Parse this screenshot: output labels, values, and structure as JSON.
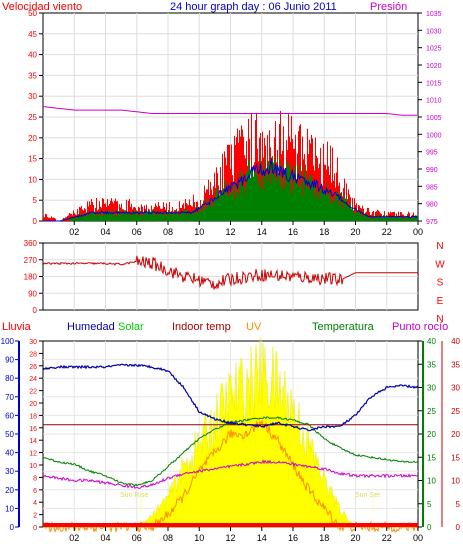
{
  "header": {
    "title": "24 hour graph day : 06 Junio 2011",
    "wind_label": "Velocidad viento",
    "pressure_label": "Presión"
  },
  "bottom_labels": {
    "rain": "Lluvia",
    "humidity": "Humedad",
    "solar": "Solar",
    "indoor_temp": "Indoor temp",
    "uv": "UV",
    "temperature": "Temperatura",
    "dew_point": "Punto rocío"
  },
  "annotations": {
    "sunrise": "Sun Rise",
    "sunset": "Sun Set"
  },
  "colors": {
    "wind_gust": "#ff0000",
    "wind_avg": "#0000cc",
    "wind_green": "#008000",
    "pressure": "#cc00cc",
    "direction": "#cc0000",
    "humidity": "#0000aa",
    "solar": "#ffff00",
    "uv": "#ff8c00",
    "indoor": "#990000",
    "temperature": "#008000",
    "dew_point": "#cc00cc",
    "rain_axis": "#0000cc",
    "left_red": "#ff0000",
    "right_magenta": "#cc00cc",
    "right_green": "#008000",
    "right_red": "#cc0000"
  },
  "chart_data": [
    {
      "type": "bar",
      "name": "wind-panel",
      "ylim_left": [
        0,
        50
      ],
      "left_ticks": [
        "0",
        "5",
        "10",
        "15",
        "20",
        "25",
        "30",
        "35",
        "40",
        "45",
        "50"
      ],
      "ylim_right": [
        975,
        1035
      ],
      "right_ticks": [
        "975",
        "980",
        "985",
        "990",
        "995",
        "1000",
        "1005",
        "1010",
        "1015",
        "1020",
        "1025",
        "1030",
        "1035"
      ],
      "x_ticks": [
        "02",
        "04",
        "06",
        "08",
        "10",
        "12",
        "14",
        "16",
        "18",
        "20",
        "22",
        "00"
      ],
      "wind_gust_hourly": [
        2,
        0,
        3,
        5,
        5,
        5,
        4,
        4,
        4,
        5,
        8,
        15,
        20,
        24,
        26,
        24,
        20,
        18,
        15,
        5,
        3,
        2,
        2,
        2
      ],
      "wind_avg_hourly": [
        0,
        0,
        1,
        2,
        2,
        2,
        2,
        2,
        2,
        2,
        4,
        7,
        9,
        12,
        13,
        11,
        10,
        8,
        6,
        3,
        1,
        1,
        1,
        1
      ],
      "pressure_hourly": [
        1008,
        1007.5,
        1007,
        1007,
        1007,
        1007,
        1006.5,
        1006,
        1006,
        1006,
        1006,
        1006,
        1006,
        1006,
        1006,
        1006,
        1006,
        1006,
        1006,
        1006,
        1006,
        1006,
        1006,
        1005.5,
        1005.5
      ]
    },
    {
      "type": "line",
      "name": "direction-panel",
      "ylim": [
        0,
        360
      ],
      "y_ticks": [
        "0",
        "90",
        "180",
        "270",
        "360"
      ],
      "compass_labels": [
        "N",
        "W",
        "S",
        "E",
        "N"
      ],
      "direction_hourly": [
        250,
        250,
        250,
        250,
        250,
        245,
        260,
        250,
        215,
        180,
        160,
        140,
        165,
        180,
        190,
        185,
        180,
        175,
        170,
        160,
        200,
        200,
        200,
        200,
        200
      ]
    },
    {
      "type": "line",
      "name": "weather-panel",
      "rain_ticks": [
        "0",
        "10",
        "20",
        "30",
        "40",
        "50",
        "60",
        "70",
        "80",
        "90",
        "100"
      ],
      "left2_ticks": [
        "0",
        "2",
        "4",
        "6",
        "8",
        "10",
        "12",
        "14",
        "16",
        "18",
        "20",
        "22",
        "24",
        "26",
        "28",
        "30"
      ],
      "right_green_ticks": [
        "0",
        "5",
        "10",
        "15",
        "20",
        "25",
        "30",
        "35",
        "40"
      ],
      "right_red_ticks": [
        "0",
        "5",
        "10",
        "15",
        "20",
        "25",
        "30",
        "35",
        "40"
      ],
      "x_ticks": [
        "02",
        "04",
        "06",
        "08",
        "10",
        "12",
        "14",
        "16",
        "18",
        "20",
        "22",
        "00"
      ],
      "humidity_hourly": [
        85,
        86,
        86,
        86,
        86,
        87,
        87,
        86,
        84,
        75,
        62,
        58,
        56,
        55,
        54,
        56,
        54,
        52,
        54,
        54,
        60,
        70,
        75,
        76,
        75
      ],
      "temperature_hourly": [
        15,
        14,
        13.5,
        12,
        11,
        9.5,
        9,
        10,
        13,
        16,
        19,
        21,
        22.5,
        23,
        23.5,
        23.5,
        23,
        22,
        19,
        17,
        15.5,
        15,
        14.5,
        14,
        14
      ],
      "dew_point_hourly": [
        11,
        10.5,
        10,
        10,
        9.5,
        9,
        8.5,
        9,
        10.5,
        11.5,
        12,
        12.5,
        13,
        13.5,
        14,
        14,
        13.5,
        13,
        12.5,
        11.5,
        11,
        11,
        11,
        11,
        11
      ],
      "indoor_temp_hourly": [
        22,
        22,
        22,
        22,
        22,
        22,
        22,
        22,
        22,
        22,
        22,
        22,
        22,
        22,
        22,
        22,
        22,
        22,
        22,
        22,
        22,
        22,
        22,
        22,
        22
      ],
      "solar_hourly": [
        0,
        0,
        0,
        0,
        0,
        0,
        0,
        2,
        5,
        10,
        14,
        18,
        22,
        24,
        26,
        24,
        20,
        14,
        8,
        3,
        0,
        0,
        0,
        0,
        0
      ],
      "uv_hourly": [
        0,
        0,
        0,
        0,
        0,
        0,
        0,
        0,
        2,
        5,
        9,
        12,
        15,
        15,
        17,
        14,
        10,
        6,
        3,
        0,
        0,
        0,
        0,
        0,
        0
      ]
    }
  ]
}
